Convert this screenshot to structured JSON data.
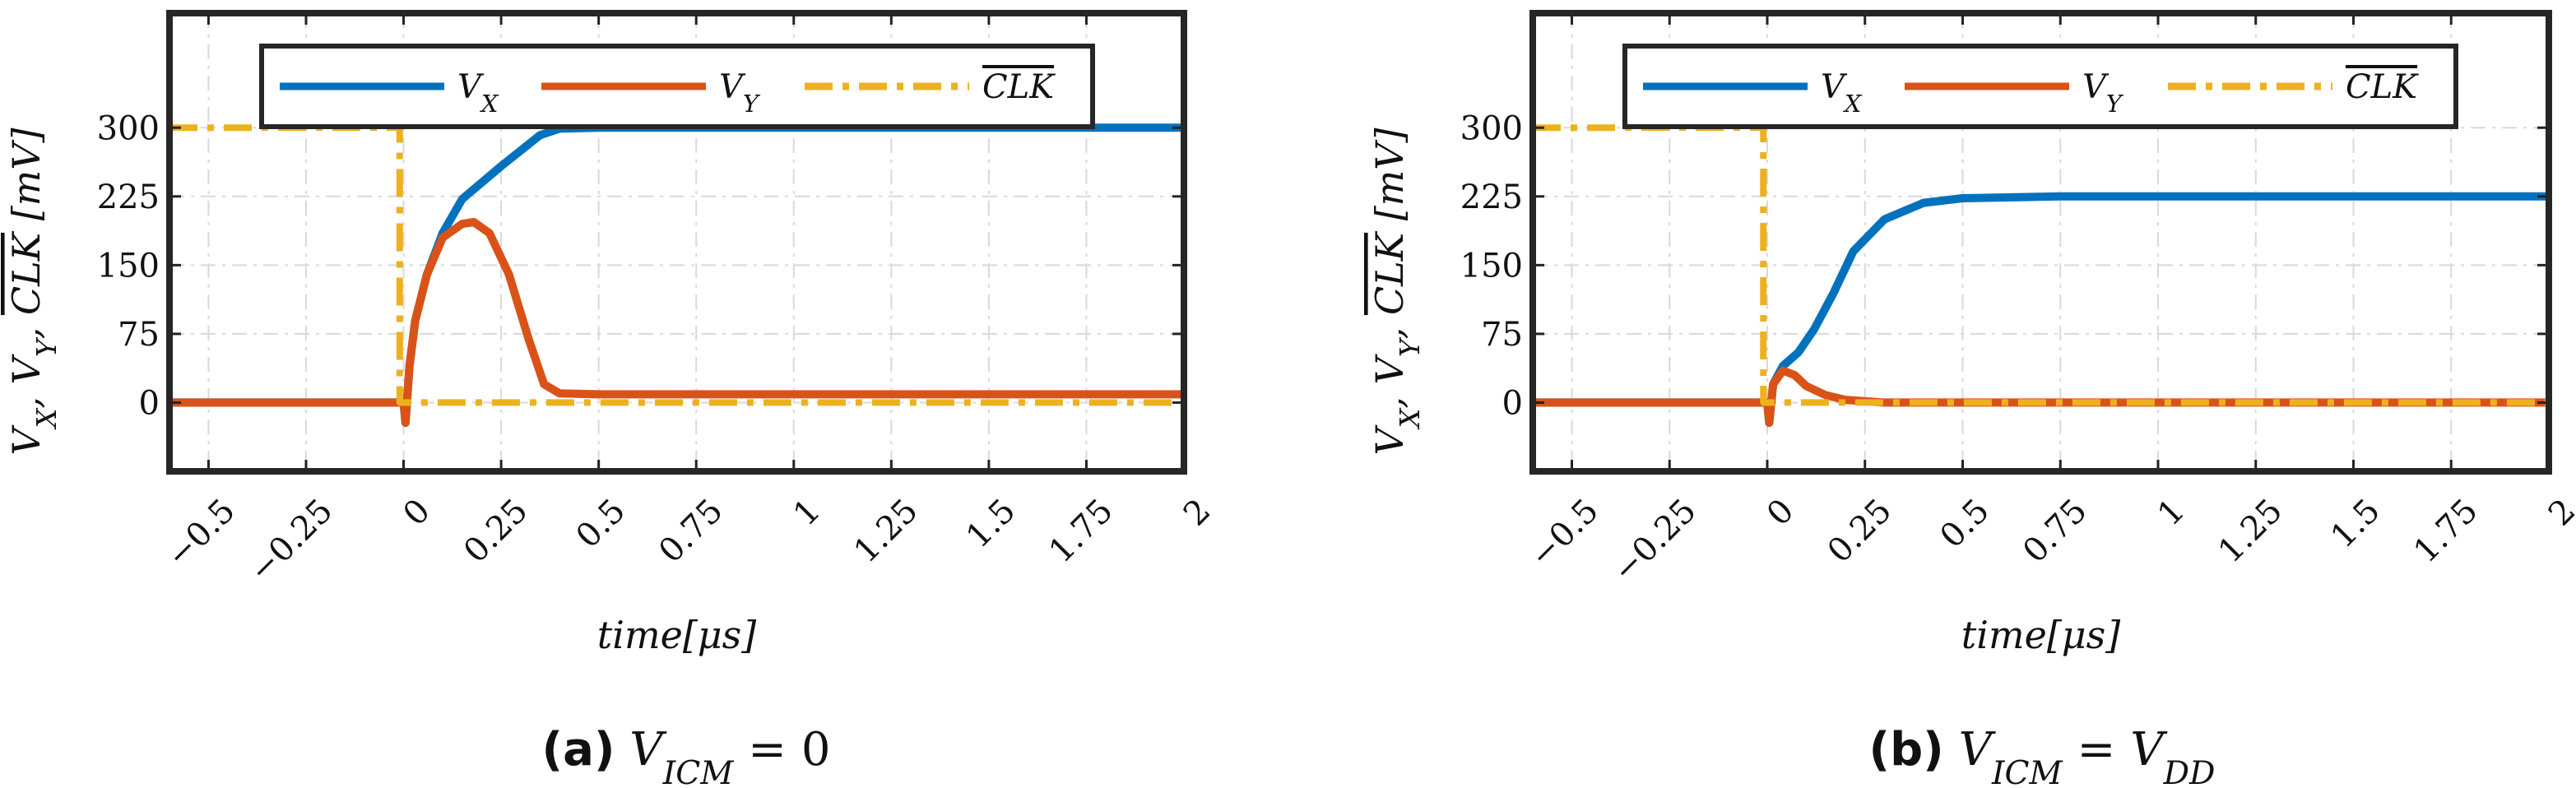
{
  "chart_data": [
    {
      "type": "line",
      "caption_label": "(a)",
      "caption_equation": "V_ICM = 0",
      "xlabel": "time[μs]",
      "ylabel": "V_X, V_Y, CLK‾ [mV]",
      "xlim": [
        -0.6,
        2
      ],
      "ylim": [
        -75,
        425
      ],
      "xticks": [
        -0.5,
        -0.25,
        0,
        0.25,
        0.5,
        0.75,
        1,
        1.25,
        1.5,
        1.75,
        2
      ],
      "xtick_labels": [
        "−0.5",
        "−0.25",
        "0",
        "0.25",
        "0.5",
        "0.75",
        "1",
        "1.25",
        "1.5",
        "1.75",
        "2"
      ],
      "yticks": [
        0,
        75,
        150,
        225,
        300
      ],
      "ytick_labels": [
        "0",
        "75",
        "150",
        "225",
        "300"
      ],
      "grid": true,
      "legend_position": "top",
      "series": [
        {
          "name": "V_X",
          "color": "#0072BD",
          "style": "solid",
          "points": [
            [
              -0.6,
              0
            ],
            [
              0,
              0
            ],
            [
              0.005,
              -22
            ],
            [
              0.015,
              40
            ],
            [
              0.03,
              90
            ],
            [
              0.06,
              140
            ],
            [
              0.1,
              185
            ],
            [
              0.15,
              222
            ],
            [
              0.2,
              240
            ],
            [
              0.25,
              258
            ],
            [
              0.3,
              275
            ],
            [
              0.35,
              292
            ],
            [
              0.4,
              299
            ],
            [
              0.5,
              300
            ],
            [
              2,
              300
            ]
          ]
        },
        {
          "name": "V_Y",
          "color": "#D95319",
          "style": "solid",
          "points": [
            [
              -0.6,
              0
            ],
            [
              0,
              0
            ],
            [
              0.005,
              -22
            ],
            [
              0.015,
              40
            ],
            [
              0.03,
              90
            ],
            [
              0.06,
              140
            ],
            [
              0.1,
              180
            ],
            [
              0.15,
              195
            ],
            [
              0.18,
              197
            ],
            [
              0.22,
              185
            ],
            [
              0.27,
              140
            ],
            [
              0.32,
              70
            ],
            [
              0.36,
              20
            ],
            [
              0.4,
              10
            ],
            [
              0.5,
              9
            ],
            [
              2,
              9
            ]
          ]
        },
        {
          "name": "CLK",
          "color": "#EDB120",
          "style": "dashdot",
          "points": [
            [
              -0.6,
              300
            ],
            [
              -0.01,
              300
            ],
            [
              -0.01,
              0
            ],
            [
              2,
              0
            ]
          ]
        }
      ]
    },
    {
      "type": "line",
      "caption_label": "(b)",
      "caption_equation": "V_ICM = V_DD",
      "xlabel": "time[μs]",
      "ylabel": "V_X, V_Y, CLK‾ [mV]",
      "xlim": [
        -0.6,
        2
      ],
      "ylim": [
        -75,
        425
      ],
      "xticks": [
        -0.5,
        -0.25,
        0,
        0.25,
        0.5,
        0.75,
        1,
        1.25,
        1.5,
        1.75,
        2
      ],
      "xtick_labels": [
        "−0.5",
        "−0.25",
        "0",
        "0.25",
        "0.5",
        "0.75",
        "1",
        "1.25",
        "1.5",
        "1.75",
        "2"
      ],
      "yticks": [
        0,
        75,
        150,
        225,
        300
      ],
      "ytick_labels": [
        "0",
        "75",
        "150",
        "225",
        "300"
      ],
      "grid": true,
      "legend_position": "top",
      "series": [
        {
          "name": "V_X",
          "color": "#0072BD",
          "style": "solid",
          "points": [
            [
              -0.6,
              0
            ],
            [
              0,
              0
            ],
            [
              0.005,
              -22
            ],
            [
              0.015,
              20
            ],
            [
              0.04,
              40
            ],
            [
              0.08,
              55
            ],
            [
              0.12,
              80
            ],
            [
              0.17,
              120
            ],
            [
              0.22,
              165
            ],
            [
              0.3,
              200
            ],
            [
              0.4,
              218
            ],
            [
              0.5,
              223
            ],
            [
              0.75,
              225
            ],
            [
              2,
              225
            ]
          ]
        },
        {
          "name": "V_Y",
          "color": "#D95319",
          "style": "solid",
          "points": [
            [
              -0.6,
              0
            ],
            [
              0,
              0
            ],
            [
              0.005,
              -22
            ],
            [
              0.015,
              20
            ],
            [
              0.04,
              35
            ],
            [
              0.07,
              30
            ],
            [
              0.1,
              18
            ],
            [
              0.15,
              8
            ],
            [
              0.2,
              3
            ],
            [
              0.3,
              0
            ],
            [
              2,
              0
            ]
          ]
        },
        {
          "name": "CLK",
          "color": "#EDB120",
          "style": "dashdot",
          "points": [
            [
              -0.6,
              300
            ],
            [
              -0.01,
              300
            ],
            [
              -0.01,
              0
            ],
            [
              2,
              0
            ]
          ]
        }
      ]
    }
  ]
}
